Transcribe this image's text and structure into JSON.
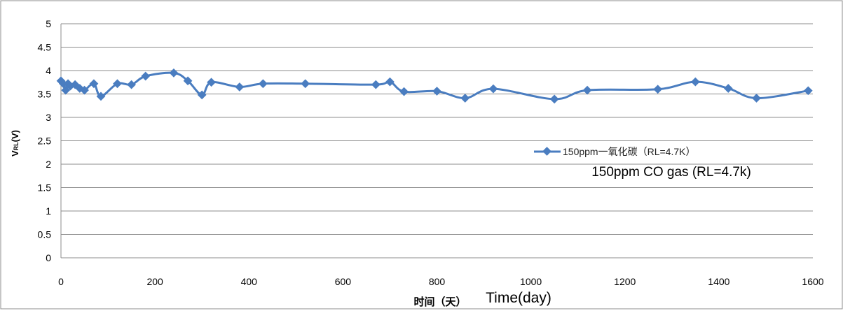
{
  "chart_data": {
    "type": "line",
    "title": "",
    "xlabel": "时间（天）",
    "xlabel_en": "Time(day)",
    "ylabel_main": "V",
    "ylabel_sub": "RL",
    "ylabel_suffix": "(V)",
    "xlim": [
      0,
      1600
    ],
    "ylim": [
      0,
      5
    ],
    "x_ticks": [
      "0",
      "200",
      "400",
      "600",
      "800",
      "1000",
      "1200",
      "1400",
      "1600"
    ],
    "y_ticks": [
      "0",
      "0.5",
      "1",
      "1.5",
      "2",
      "2.5",
      "3",
      "3.5",
      "4",
      "4.5",
      "5"
    ],
    "grid": "horizontal",
    "legend_position": "right",
    "series_color": "#4a7dc0",
    "series": [
      {
        "name": "150ppm一氧化碳（RL=4.7K）",
        "annotation": "150ppm CO gas (RL=4.7k)",
        "x": [
          0,
          5,
          10,
          15,
          20,
          30,
          40,
          50,
          70,
          85,
          120,
          150,
          180,
          240,
          270,
          300,
          320,
          380,
          430,
          520,
          670,
          700,
          730,
          800,
          860,
          920,
          1050,
          1120,
          1270,
          1350,
          1420,
          1480,
          1590
        ],
        "values": [
          3.78,
          3.72,
          3.58,
          3.72,
          3.67,
          3.7,
          3.62,
          3.58,
          3.72,
          3.45,
          3.72,
          3.7,
          3.88,
          3.95,
          3.78,
          3.48,
          3.75,
          3.65,
          3.72,
          3.72,
          3.7,
          3.76,
          3.55,
          3.56,
          3.41,
          3.61,
          3.39,
          3.58,
          3.6,
          3.76,
          3.62,
          3.41,
          3.57
        ]
      }
    ]
  }
}
